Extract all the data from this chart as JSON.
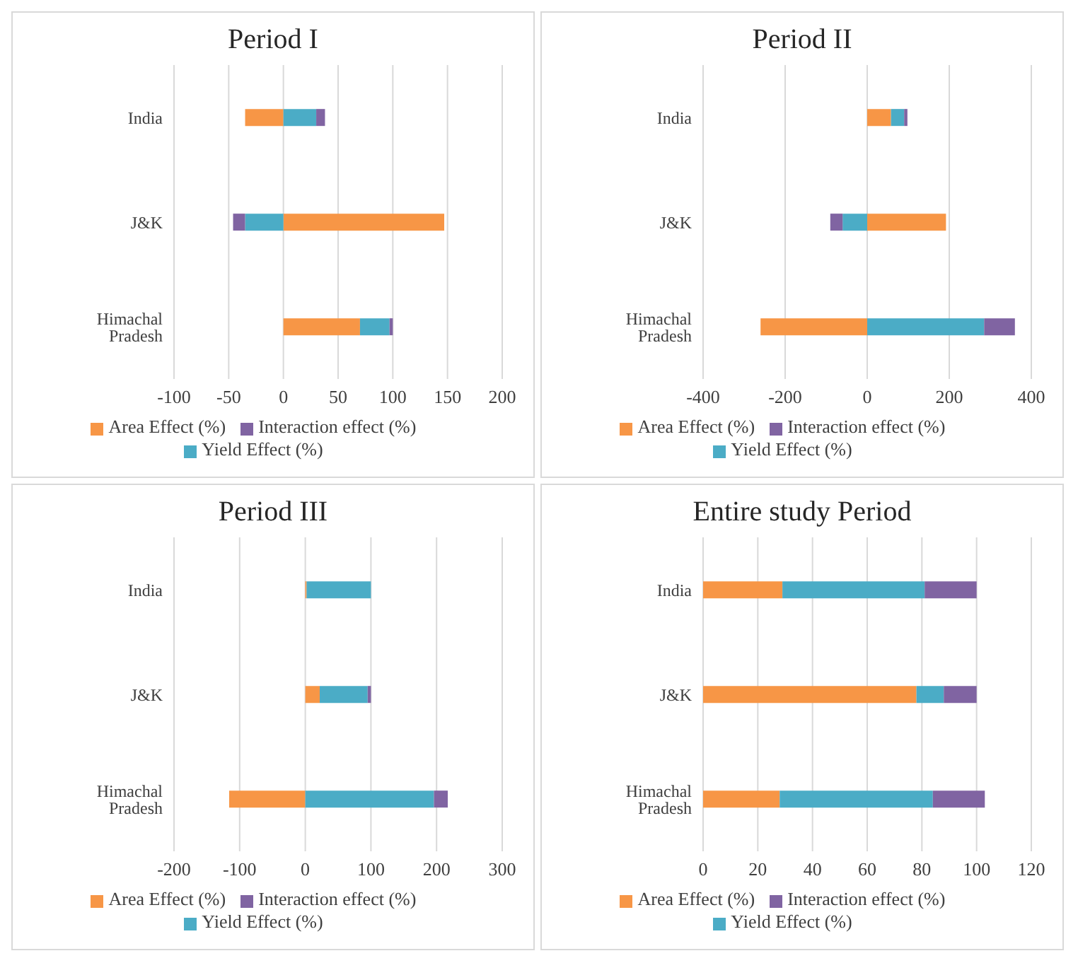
{
  "chart_data": [
    {
      "type": "bar",
      "orientation": "horizontal",
      "stacked": true,
      "title": "Period I",
      "categories": [
        "India",
        "J&K",
        "Himachal Pradesh"
      ],
      "series": [
        {
          "name": "Area Effect (%)",
          "color": "#f79646",
          "values": [
            -35,
            147,
            70
          ]
        },
        {
          "name": "Yield Effect (%)",
          "color": "#4bacc6",
          "values": [
            30,
            -35,
            27
          ]
        },
        {
          "name": "Interaction effect (%)",
          "color": "#8064a2",
          "values": [
            8,
            -11,
            3
          ]
        }
      ],
      "xlim": [
        -100,
        200
      ],
      "xticks": [
        -100,
        -50,
        0,
        50,
        100,
        150,
        200
      ],
      "grid": "x",
      "legend": "bottom"
    },
    {
      "type": "bar",
      "orientation": "horizontal",
      "stacked": true,
      "title": "Period II",
      "categories": [
        "India",
        "J&K",
        "Himachal Pradesh"
      ],
      "series": [
        {
          "name": "Area Effect (%)",
          "color": "#f79646",
          "values": [
            58,
            192,
            -260
          ]
        },
        {
          "name": "Yield Effect (%)",
          "color": "#4bacc6",
          "values": [
            32,
            -60,
            285
          ]
        },
        {
          "name": "Interaction effect (%)",
          "color": "#8064a2",
          "values": [
            8,
            -30,
            75
          ]
        }
      ],
      "xlim": [
        -400,
        400
      ],
      "xticks": [
        -400,
        -200,
        0,
        200,
        400
      ],
      "grid": "x",
      "legend": "bottom"
    },
    {
      "type": "bar",
      "orientation": "horizontal",
      "stacked": true,
      "title": "Period III",
      "categories": [
        "India",
        "J&K",
        "Himachal Pradesh"
      ],
      "series": [
        {
          "name": "Area Effect (%)",
          "color": "#f79646",
          "values": [
            2,
            22,
            -116
          ]
        },
        {
          "name": "Yield Effect (%)",
          "color": "#4bacc6",
          "values": [
            98,
            73,
            196
          ]
        },
        {
          "name": "Interaction effect (%)",
          "color": "#8064a2",
          "values": [
            0,
            5,
            21
          ]
        }
      ],
      "xlim": [
        -200,
        300
      ],
      "xticks": [
        -200,
        -100,
        0,
        100,
        200,
        300
      ],
      "grid": "x",
      "legend": "bottom"
    },
    {
      "type": "bar",
      "orientation": "horizontal",
      "stacked": true,
      "title": "Entire study Period",
      "categories": [
        "India",
        "J&K",
        "Himachal Pradesh"
      ],
      "series": [
        {
          "name": "Area Effect (%)",
          "color": "#f79646",
          "values": [
            29,
            78,
            28
          ]
        },
        {
          "name": "Yield Effect (%)",
          "color": "#4bacc6",
          "values": [
            52,
            10,
            56
          ]
        },
        {
          "name": "Interaction effect (%)",
          "color": "#8064a2",
          "values": [
            19,
            12,
            19
          ]
        }
      ],
      "xlim": [
        0,
        120
      ],
      "xticks": [
        0,
        20,
        40,
        60,
        80,
        100,
        120
      ],
      "grid": "x",
      "legend": "bottom"
    }
  ]
}
